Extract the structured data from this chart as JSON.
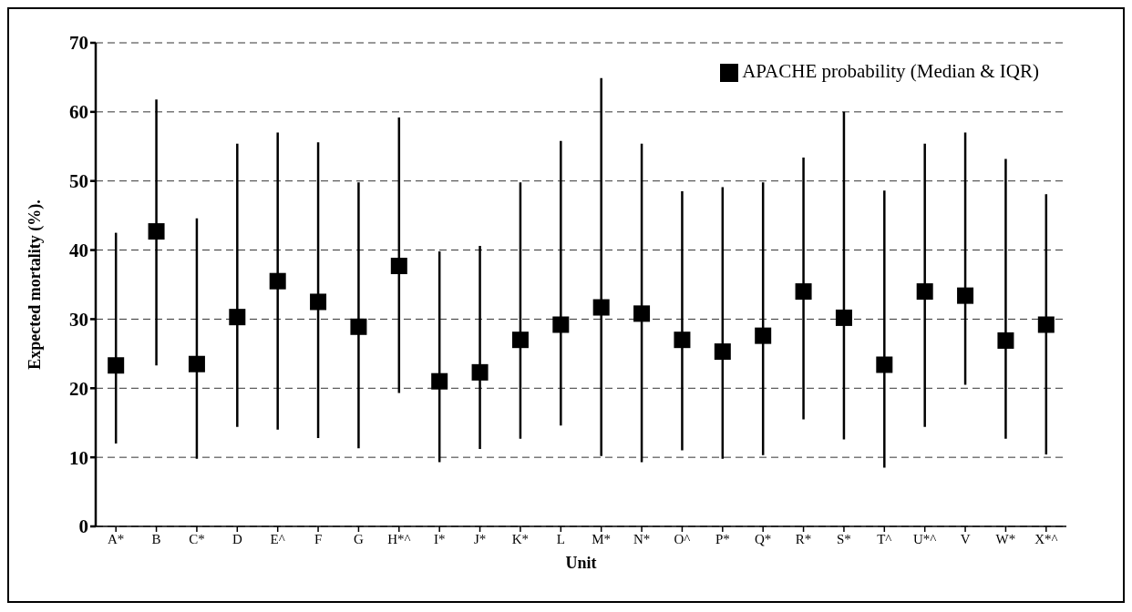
{
  "chart_data": {
    "type": "scatter",
    "xlabel": "Unit",
    "ylabel": "Expected mortality (%).",
    "categories": [
      "A*",
      "B",
      "C*",
      "D",
      "E^",
      "F",
      "G",
      "H*^",
      "I*",
      "J*",
      "K*",
      "L",
      "M*",
      "N*",
      "O^",
      "P*",
      "Q*",
      "R*",
      "S*",
      "T^",
      "U*^",
      "V",
      "W*",
      "X*^"
    ],
    "series": [
      {
        "name": "APACHE probability (Median & IQR)",
        "color": "#000000",
        "values": [
          23.3,
          42.7,
          23.5,
          30.3,
          35.5,
          32.5,
          28.9,
          37.7,
          21,
          22.3,
          27,
          29.2,
          31.7,
          30.8,
          27,
          25.3,
          27.6,
          34,
          30.2,
          23.4,
          34,
          33.4,
          26.9,
          29.2
        ],
        "errors": [
          [
            12,
            42.5
          ],
          [
            23.3,
            61.8
          ],
          [
            9.8,
            44.6
          ],
          [
            14.4,
            55.4
          ],
          [
            14,
            57
          ],
          [
            12.8,
            55.6
          ],
          [
            11.3,
            49.8
          ],
          [
            19.3,
            59.2
          ],
          [
            9.3,
            39.8
          ],
          [
            11.2,
            40.6
          ],
          [
            12.7,
            49.8
          ],
          [
            14.6,
            55.8
          ],
          [
            10.2,
            64.9
          ],
          [
            9.3,
            55.4
          ],
          [
            11,
            48.5
          ],
          [
            9.8,
            49.1
          ],
          [
            10.3,
            49.8
          ],
          [
            15.5,
            53.4
          ],
          [
            12.6,
            60
          ],
          [
            8.5,
            48.6
          ],
          [
            14.4,
            55.4
          ],
          [
            20.5,
            57
          ],
          [
            12.7,
            53.2
          ],
          [
            10.4,
            48.1
          ]
        ]
      }
    ],
    "ylim": [
      0,
      70
    ],
    "yticks": [
      0,
      10,
      20,
      30,
      40,
      50,
      60,
      70
    ],
    "grid": "y",
    "legend": "top right",
    "marker": "square"
  }
}
